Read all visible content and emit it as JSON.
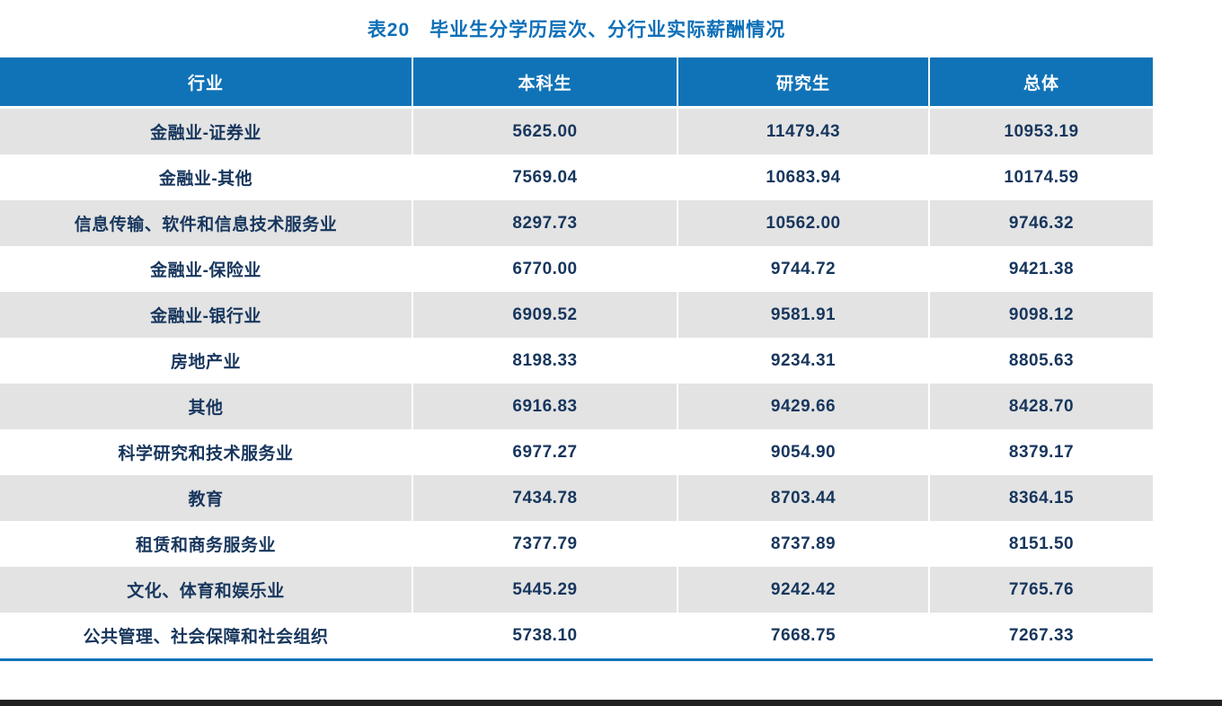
{
  "title": "表20　毕业生分学历层次、分行业实际薪酬情况",
  "table": {
    "headers": [
      "行业",
      "本科生",
      "研究生",
      "总体"
    ],
    "rows": [
      [
        "金融业-证券业",
        "5625.00",
        "11479.43",
        "10953.19"
      ],
      [
        "金融业-其他",
        "7569.04",
        "10683.94",
        "10174.59"
      ],
      [
        "信息传输、软件和信息技术服务业",
        "8297.73",
        "10562.00",
        "9746.32"
      ],
      [
        "金融业-保险业",
        "6770.00",
        "9744.72",
        "9421.38"
      ],
      [
        "金融业-银行业",
        "6909.52",
        "9581.91",
        "9098.12"
      ],
      [
        "房地产业",
        "8198.33",
        "9234.31",
        "8805.63"
      ],
      [
        "其他",
        "6916.83",
        "9429.66",
        "8428.70"
      ],
      [
        "科学研究和技术服务业",
        "6977.27",
        "9054.90",
        "8379.17"
      ],
      [
        "教育",
        "7434.78",
        "8703.44",
        "8364.15"
      ],
      [
        "租赁和商务服务业",
        "7377.79",
        "8737.89",
        "8151.50"
      ],
      [
        "文化、体育和娱乐业",
        "5445.29",
        "9242.42",
        "7765.76"
      ],
      [
        "公共管理、社会保障和社会组织",
        "5738.10",
        "7668.75",
        "7267.33"
      ]
    ]
  },
  "chart_data": {
    "type": "table",
    "title": "表20　毕业生分学历层次、分行业实际薪酬情况",
    "columns": [
      "行业",
      "本科生",
      "研究生",
      "总体"
    ],
    "rows": [
      [
        "金融业-证券业",
        5625.0,
        11479.43,
        10953.19
      ],
      [
        "金融业-其他",
        7569.04,
        10683.94,
        10174.59
      ],
      [
        "信息传输、软件和信息技术服务业",
        8297.73,
        10562.0,
        9746.32
      ],
      [
        "金融业-保险业",
        6770.0,
        9744.72,
        9421.38
      ],
      [
        "金融业-银行业",
        6909.52,
        9581.91,
        9098.12
      ],
      [
        "房地产业",
        8198.33,
        9234.31,
        8805.63
      ],
      [
        "其他",
        6916.83,
        9429.66,
        8428.7
      ],
      [
        "科学研究和技术服务业",
        6977.27,
        9054.9,
        8379.17
      ],
      [
        "教育",
        7434.78,
        8703.44,
        8364.15
      ],
      [
        "租赁和商务服务业",
        7377.79,
        8737.89,
        8151.5
      ],
      [
        "文化、体育和娱乐业",
        5445.29,
        9242.42,
        7765.76
      ],
      [
        "公共管理、社会保障和社会组织",
        5738.1,
        7668.75,
        7267.33
      ]
    ]
  },
  "colors": {
    "header_bg": "#1173b7",
    "header_text": "#ffffff",
    "row_odd_bg": "#e3e3e3",
    "row_even_bg": "#ffffff",
    "cell_text": "#17365d",
    "title_text": "#0d6fb8",
    "bottom_rule": "#1173b7",
    "bottom_bar": "#212121"
  }
}
